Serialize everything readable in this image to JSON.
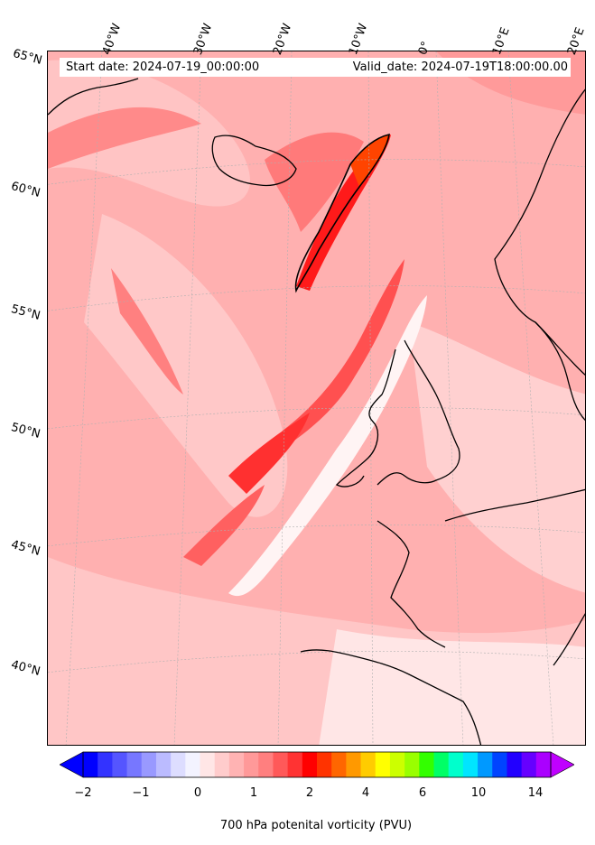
{
  "header": {
    "start_date": "Start date: 2024-07-19_00:00:00",
    "valid_date": "Valid_date: 2024-07-19T18:00:00.00"
  },
  "longitude_labels": [
    "40°W",
    "30°W",
    "20°W",
    "10°W",
    "0°",
    "10°E",
    "20°E"
  ],
  "latitude_labels": [
    "65°N",
    "60°N",
    "55°N",
    "50°N",
    "45°N",
    "40°N"
  ],
  "colorbar": {
    "title": "700 hPa potenital vorticity (PVU)",
    "tick_labels": [
      "−2",
      "−1",
      "0",
      "1",
      "2",
      "4",
      "6",
      "10",
      "14"
    ],
    "colors": [
      "#0000ff",
      "#3333ff",
      "#5555ff",
      "#7777ff",
      "#9999ff",
      "#bbbbff",
      "#ddddff",
      "#f3f3ff",
      "#ffe6e6",
      "#ffcccc",
      "#ffb3b3",
      "#ff9999",
      "#ff7f7f",
      "#ff5959",
      "#ff3333",
      "#ff0000",
      "#ff3300",
      "#ff6600",
      "#ff9900",
      "#ffcc00",
      "#ffff00",
      "#ccff00",
      "#99ff00",
      "#33ff00",
      "#00ff66",
      "#00ffcc",
      "#00e5ff",
      "#0099ff",
      "#0044ff",
      "#2200ff",
      "#6600ff",
      "#aa00ff"
    ]
  }
}
